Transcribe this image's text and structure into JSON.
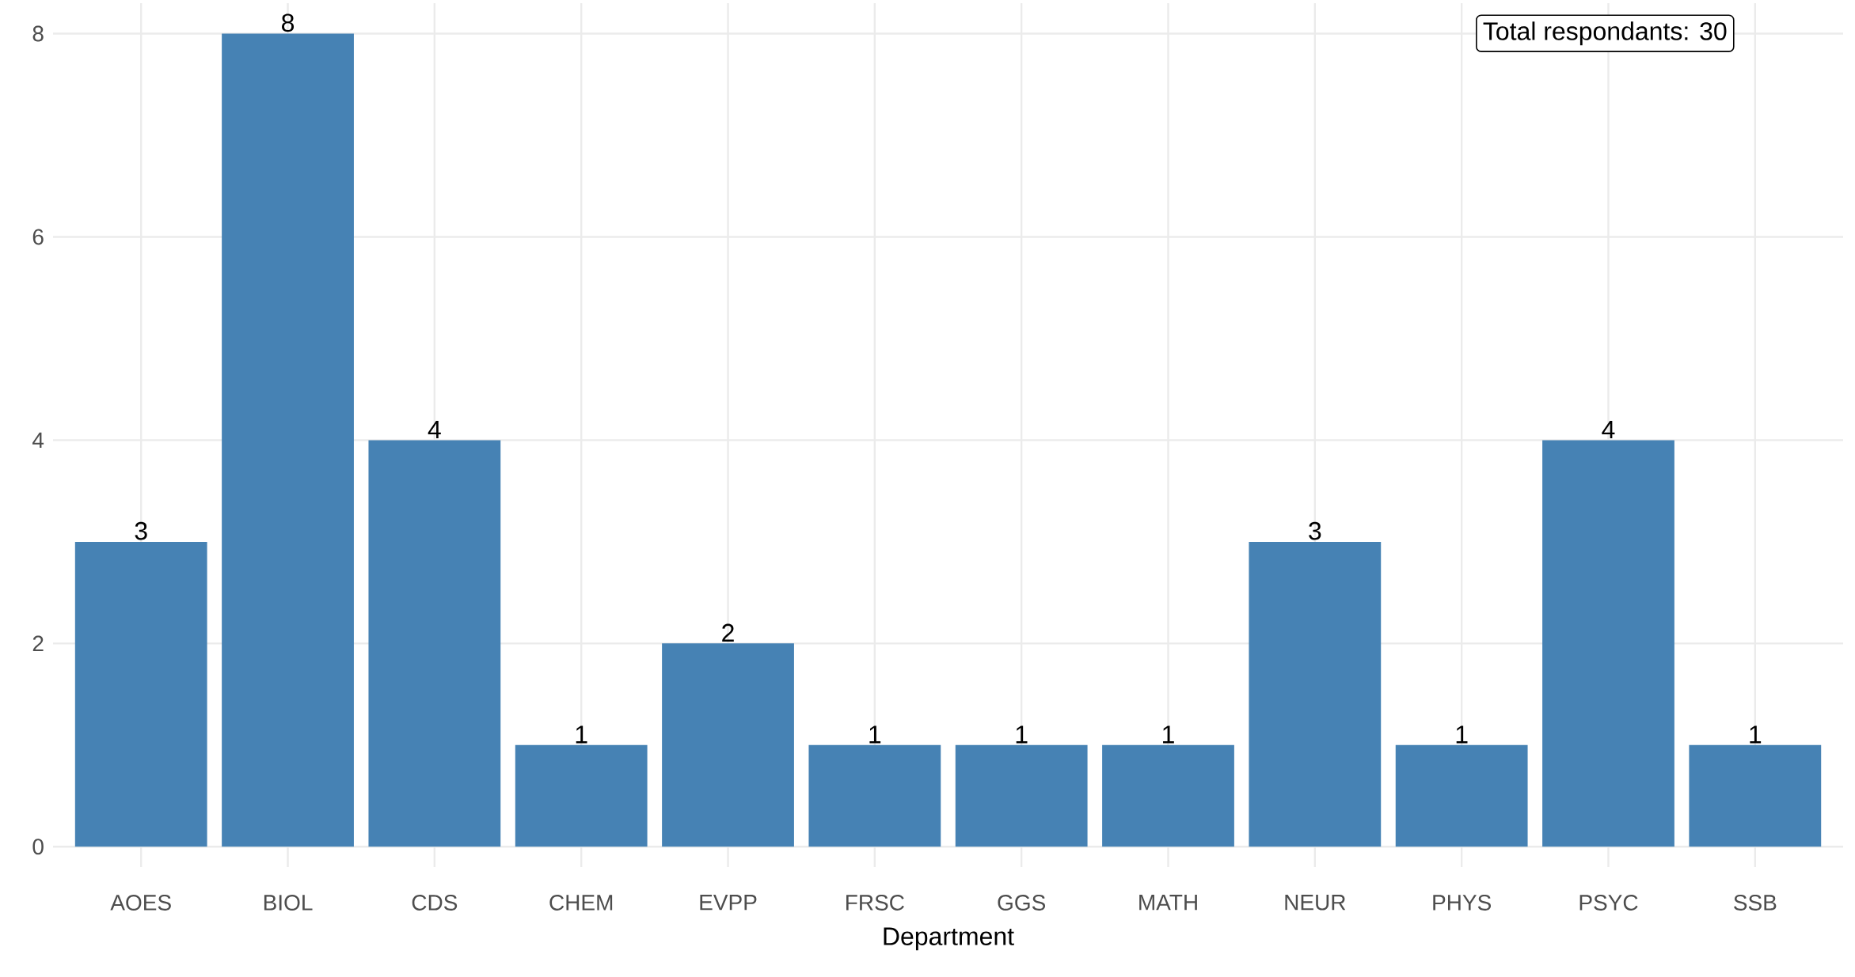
{
  "chart_data": {
    "type": "bar",
    "xlabel": "Department",
    "categories": [
      "AOES",
      "BIOL",
      "CDS",
      "CHEM",
      "EVPP",
      "FRSC",
      "GGS",
      "MATH",
      "NEUR",
      "PHYS",
      "PSYC",
      "SSB"
    ],
    "values": [
      3,
      8,
      4,
      1,
      2,
      1,
      1,
      1,
      3,
      1,
      4,
      1
    ],
    "color": "#4682b4",
    "data_labels": true,
    "ylim": [
      -0.2,
      8.3
    ],
    "yticks": [
      0,
      2,
      4,
      6,
      8
    ],
    "grid": true,
    "annotations": [
      "Total respondants: 30"
    ]
  }
}
